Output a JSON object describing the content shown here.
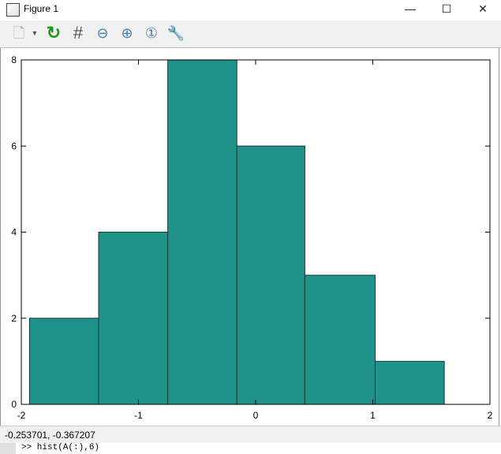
{
  "window": {
    "title": "Figure 1",
    "minimize": "—",
    "maximize": "☐",
    "close": "✕"
  },
  "toolbar": {
    "icons": [
      "new-figure-icon",
      "dropdown-icon",
      "rotate-icon",
      "grid-icon",
      "zoom-out-icon",
      "zoom-in-icon",
      "zoom-reset-icon",
      "settings-wrench-icon"
    ]
  },
  "status": {
    "coords": "-0.253701, -0.367207"
  },
  "command": {
    "text": ">> hist(A(:),6)"
  },
  "chart_data": {
    "type": "bar",
    "subtype": "histogram",
    "bin_edges": [
      -1.93,
      -1.34,
      -0.75,
      -0.16,
      0.42,
      1.02,
      1.61
    ],
    "values": [
      2,
      4,
      8,
      6,
      3,
      1
    ],
    "xlim": [
      -2,
      2
    ],
    "ylim": [
      0,
      8
    ],
    "xticks": [
      "-2",
      "-1",
      "0",
      "1",
      "2"
    ],
    "yticks": [
      "0",
      "2",
      "4",
      "6",
      "8"
    ],
    "bar_color": "#1f928a",
    "edge_color": "#1a3a38",
    "grid": false
  }
}
